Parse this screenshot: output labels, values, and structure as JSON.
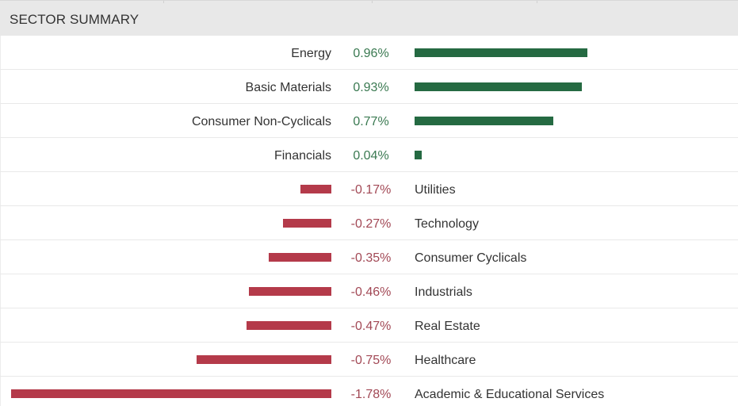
{
  "header": {
    "title": "SECTOR SUMMARY"
  },
  "colors": {
    "positive": "#256a42",
    "negative": "#b43a4a",
    "positive_text": "#3b7a52",
    "negative_text": "#a24855"
  },
  "chart_data": {
    "type": "bar",
    "orientation": "horizontal-diverging",
    "categories": [
      "Energy",
      "Basic Materials",
      "Consumer Non-Cyclicals",
      "Financials",
      "Utilities",
      "Technology",
      "Consumer Cyclicals",
      "Industrials",
      "Real Estate",
      "Healthcare",
      "Academic & Educational Services"
    ],
    "values": [
      0.96,
      0.93,
      0.77,
      0.04,
      -0.17,
      -0.27,
      -0.35,
      -0.46,
      -0.47,
      -0.75,
      -1.78
    ],
    "value_labels": [
      "0.96%",
      "0.93%",
      "0.77%",
      "0.04%",
      "-0.17%",
      "-0.27%",
      "-0.35%",
      "-0.46%",
      "-0.47%",
      "-0.75%",
      "-1.78%"
    ],
    "title": "SECTOR SUMMARY",
    "unit": "%",
    "grid": false,
    "legend": "none"
  }
}
